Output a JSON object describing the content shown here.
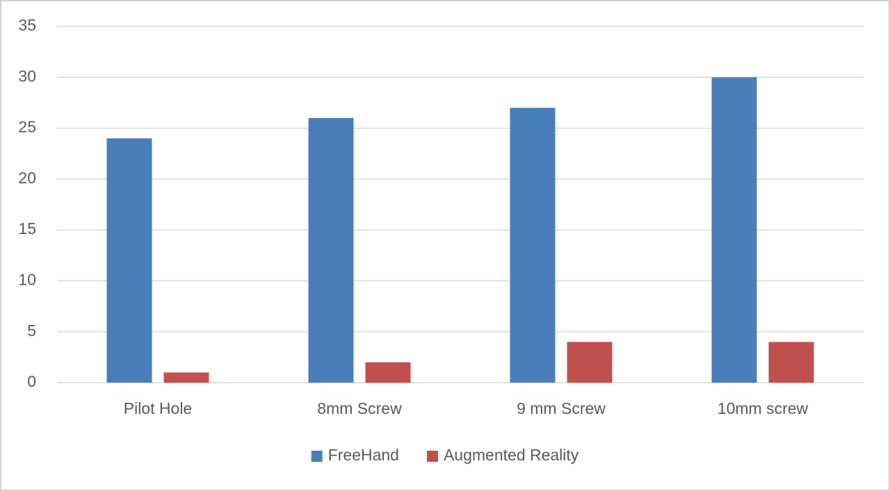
{
  "chart_data": {
    "type": "bar",
    "categories": [
      "Pilot Hole",
      "8mm Screw",
      "9 mm Screw",
      "10mm screw"
    ],
    "series": [
      {
        "name": "FreeHand",
        "color": "#4a7ebb",
        "values": [
          24,
          26,
          27,
          30
        ]
      },
      {
        "name": "Augmented Reality",
        "color": "#c0504d",
        "values": [
          1,
          2,
          4,
          4
        ]
      }
    ],
    "ylim": [
      0,
      35
    ],
    "yticks": [
      0,
      5,
      10,
      15,
      20,
      25,
      30,
      35
    ],
    "grid": true,
    "legend": "bottom"
  }
}
